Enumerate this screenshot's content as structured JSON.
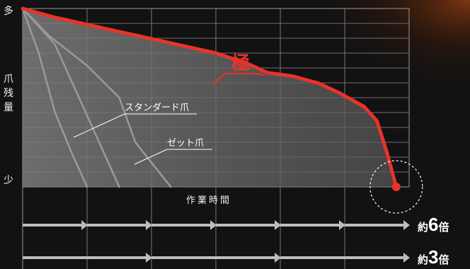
{
  "chart_data": {
    "type": "line",
    "ylabel_top": "多",
    "ylabel_chars": [
      "爪",
      "残",
      "量"
    ],
    "ylabel_bottom": "少",
    "xlabel": "作業時間",
    "xlim": [
      0,
      6
    ],
    "ylim": [
      0,
      1
    ],
    "grid": true,
    "series": [
      {
        "name": "極",
        "color": "#e8332a",
        "x": [
          0,
          0.5,
          1,
          1.5,
          2,
          2.5,
          3,
          3.5,
          3.8,
          4.2,
          4.6,
          4.9,
          5.3,
          5.5,
          5.65,
          5.8
        ],
        "y": [
          1.0,
          0.95,
          0.91,
          0.87,
          0.83,
          0.79,
          0.75,
          0.69,
          0.64,
          0.62,
          0.58,
          0.53,
          0.45,
          0.37,
          0.2,
          0.0
        ]
      },
      {
        "name": "スタンダード爪",
        "color": "#9a9a9a",
        "x": [
          0,
          0.4,
          1,
          1.5,
          1.75,
          2.3
        ],
        "y": [
          1.0,
          0.85,
          0.68,
          0.5,
          0.25,
          0.0
        ]
      },
      {
        "name": "ゼット爪",
        "color": "#9a9a9a",
        "x": [
          0,
          0.25,
          0.5,
          0.75,
          1.0
        ],
        "y": [
          1.0,
          0.75,
          0.42,
          0.2,
          0.0
        ]
      },
      {
        "name": "",
        "color": "#9a9a9a",
        "x": [
          0,
          0.5,
          1.0,
          1.5
        ],
        "y": [
          1.0,
          0.8,
          0.4,
          0.0
        ]
      }
    ],
    "annotations": [
      {
        "text": "極",
        "color": "#e8332a"
      },
      {
        "text": "スタンダード爪",
        "color": "#ffffff"
      },
      {
        "text": "ゼット爪",
        "color": "#ffffff"
      }
    ]
  },
  "multipliers": [
    {
      "prefix": "約",
      "number": "6",
      "suffix": "倍",
      "segments": 6
    },
    {
      "prefix": "約",
      "number": "3",
      "suffix": "倍",
      "segments": 3
    }
  ],
  "colors": {
    "background": "#121212",
    "accent_red": "#e8332a",
    "gray_line": "#9a9a9a",
    "arrow": "#bdbdbd"
  }
}
